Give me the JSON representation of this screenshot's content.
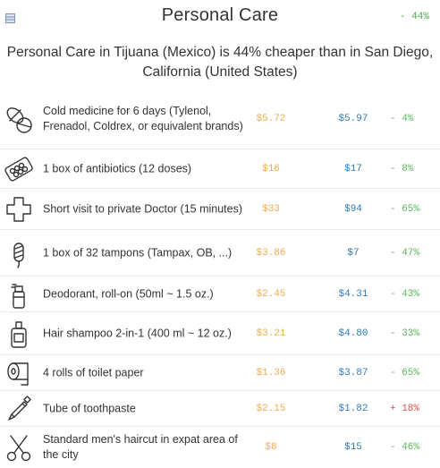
{
  "header": {
    "icon": "table-icon",
    "title": "Personal Care",
    "diff": "- 44%"
  },
  "summary": "Personal Care in Tijuana (Mexico) is 44% cheaper than in San Diego, California (United States)",
  "colors": {
    "price_city1": "#f0ad4e",
    "price_city2": "#337ab7",
    "cheaper": "#5cb85c",
    "pricier": "#d9534f"
  },
  "items": [
    {
      "icon": "pills-icon",
      "name": "Cold medicine for 6 days (Tylenol, Frenadol, Coldrex, or equivalent brands)",
      "price_city1": "$5.72",
      "price_city2": "$5.97",
      "diff": "- 4%",
      "direction": "cheaper"
    },
    {
      "icon": "blister-pack-icon",
      "name": "1 box of antibiotics (12 doses)",
      "price_city1": "$16",
      "price_city2": "$17",
      "diff": "- 8%",
      "direction": "cheaper"
    },
    {
      "icon": "medical-cross-icon",
      "name": "Short visit to private Doctor (15 minutes)",
      "price_city1": "$33",
      "price_city2": "$94",
      "diff": "- 65%",
      "direction": "cheaper"
    },
    {
      "icon": "tampon-icon",
      "name": "1 box of 32 tampons (Tampax, OB, ...)",
      "price_city1": "$3.86",
      "price_city2": "$7",
      "diff": "- 47%",
      "direction": "cheaper"
    },
    {
      "icon": "deodorant-icon",
      "name": "Deodorant, roll-on (50ml ~ 1.5 oz.)",
      "price_city1": "$2.45",
      "price_city2": "$4.31",
      "diff": "- 43%",
      "direction": "cheaper"
    },
    {
      "icon": "shampoo-bottle-icon",
      "name": "Hair shampoo 2-in-1 (400 ml ~ 12 oz.)",
      "price_city1": "$3.21",
      "price_city2": "$4.80",
      "diff": "- 33%",
      "direction": "cheaper"
    },
    {
      "icon": "toilet-paper-icon",
      "name": "4 rolls of toilet paper",
      "price_city1": "$1.36",
      "price_city2": "$3.87",
      "diff": "- 65%",
      "direction": "cheaper"
    },
    {
      "icon": "toothpaste-icon",
      "name": "Tube of toothpaste",
      "price_city1": "$2.15",
      "price_city2": "$1.82",
      "diff": "+ 18%",
      "direction": "pricier"
    },
    {
      "icon": "scissors-icon",
      "name": "Standard men's haircut in expat area of the city",
      "price_city1": "$8",
      "price_city2": "$15",
      "diff": "- 46%",
      "direction": "cheaper"
    }
  ]
}
